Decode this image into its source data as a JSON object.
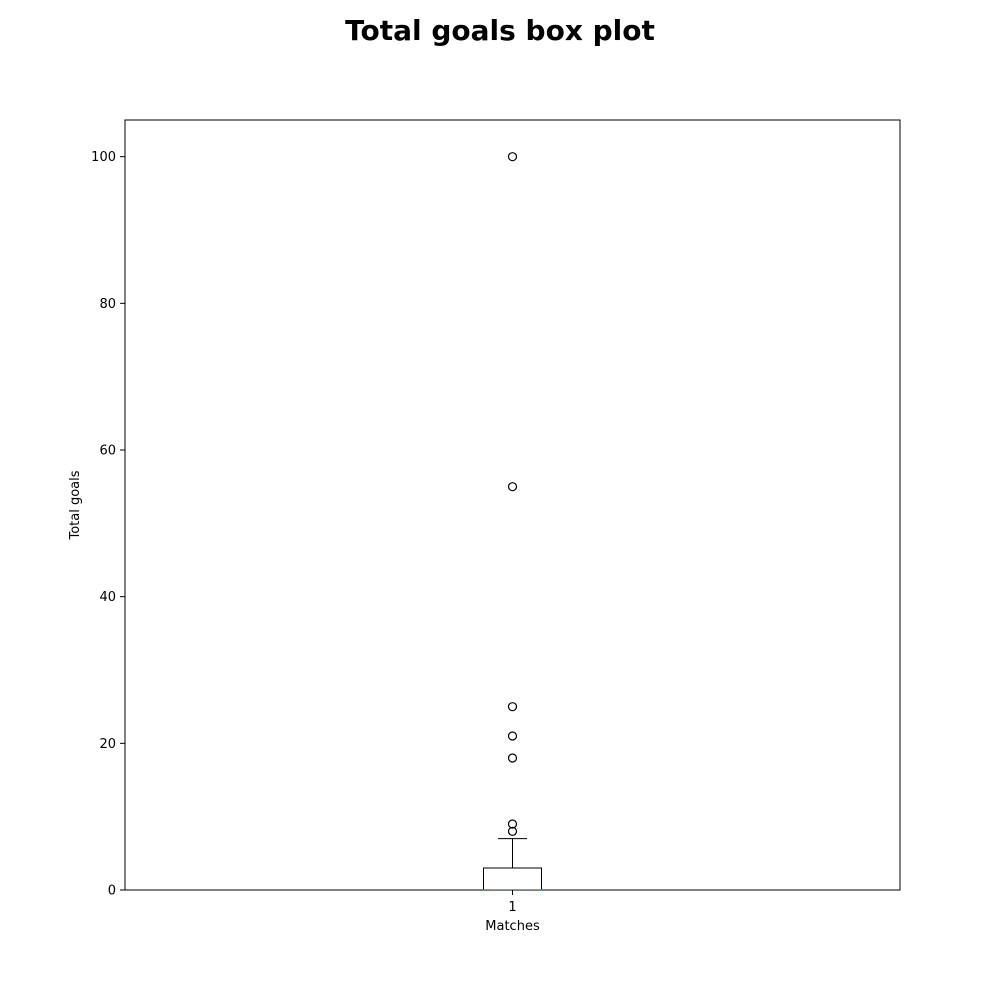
{
  "chart_data": {
    "type": "box",
    "title": "Total goals box plot",
    "xlabel": "Matches",
    "ylabel": "Total goals",
    "categories": [
      "1"
    ],
    "ylim": [
      0,
      105
    ],
    "yticks": [
      0,
      20,
      40,
      60,
      80,
      100
    ],
    "grid": false,
    "box": {
      "min": 0,
      "q1": 0,
      "median": 0,
      "q3": 3,
      "max": 7,
      "outliers": [
        8,
        9,
        18,
        21,
        25,
        55,
        100
      ]
    },
    "colors": {
      "box": "#000000",
      "median": "#ff7f0e",
      "outlier": "#000000"
    }
  }
}
